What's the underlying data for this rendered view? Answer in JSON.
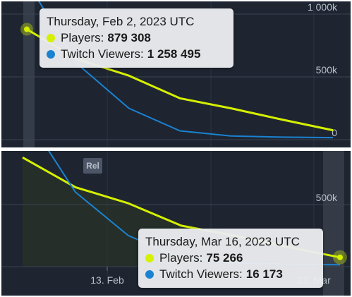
{
  "colors": {
    "players": "#d5f000",
    "twitch": "#1b82d1",
    "background": "#1e2531"
  },
  "top_chart": {
    "y_ticks": [
      "1 000k",
      "500k",
      "0"
    ],
    "tooltip": {
      "date": "Thursday, Feb 2, 2023 UTC",
      "rows": [
        {
          "label": "Players:",
          "value": "879 308",
          "color": "#d5f000"
        },
        {
          "label": "Twitch Viewers:",
          "value": "1 258 495",
          "color": "#1b82d1"
        }
      ]
    }
  },
  "bottom_chart": {
    "badge": "Rel",
    "y_ticks": [
      "500k"
    ],
    "x_ticks": [
      "13. Feb",
      "13. Mar"
    ],
    "tooltip": {
      "date": "Thursday, Mar 16, 2023 UTC",
      "rows": [
        {
          "label": "Players:",
          "value": "75 266",
          "color": "#d5f000"
        },
        {
          "label": "Twitch Viewers:",
          "value": "16 173",
          "color": "#1b82d1"
        }
      ]
    }
  },
  "chart_data": {
    "type": "line",
    "x": [
      "2023-02-02",
      "2023-02-09",
      "2023-02-16",
      "2023-02-23",
      "2023-03-02",
      "2023-03-09",
      "2023-03-16"
    ],
    "series": [
      {
        "name": "Players",
        "values": [
          879308,
          640000,
          510000,
          330000,
          250000,
          160000,
          75266
        ]
      },
      {
        "name": "Twitch Viewers",
        "values": [
          1258495,
          600000,
          250000,
          70000,
          30000,
          20000,
          16173
        ]
      }
    ],
    "y_ticks": [
      "1 000k",
      "500k",
      "0"
    ],
    "x_ticks": [
      "13. Feb",
      "13. Mar"
    ],
    "ylim": [
      0,
      1100000
    ],
    "grid": true
  }
}
